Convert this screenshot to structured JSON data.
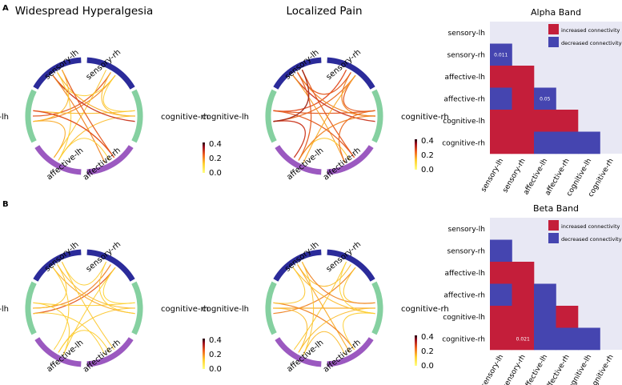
{
  "panels": [
    {
      "letter": "A",
      "circles": [
        {
          "title": "Widespread Hyperalgesia",
          "edges": [
            [
              0,
              4,
              0.25
            ],
            [
              0,
              4,
              0.3
            ],
            [
              0,
              3,
              0.12
            ],
            [
              0,
              5,
              0.1
            ],
            [
              1,
              3,
              0.15
            ],
            [
              1,
              4,
              0.15
            ],
            [
              1,
              5,
              0.35
            ],
            [
              1,
              5,
              0.2
            ],
            [
              2,
              5,
              0.3
            ],
            [
              2,
              5,
              0.25
            ],
            [
              2,
              3,
              0.1
            ],
            [
              2,
              4,
              0.08
            ],
            [
              3,
              4,
              0.2
            ],
            [
              3,
              5,
              0.1
            ],
            [
              4,
              5,
              0.15
            ],
            [
              0,
              1,
              0.1
            ],
            [
              0,
              1,
              0.15
            ],
            [
              2,
              4,
              0.32
            ]
          ]
        },
        {
          "title": "Localized Pain",
          "edges": [
            [
              0,
              1,
              0.3
            ],
            [
              0,
              1,
              0.25
            ],
            [
              0,
              4,
              0.32
            ],
            [
              0,
              4,
              0.28
            ],
            [
              0,
              5,
              0.3
            ],
            [
              1,
              4,
              0.3
            ],
            [
              1,
              5,
              0.35
            ],
            [
              1,
              5,
              0.25
            ],
            [
              2,
              5,
              0.3
            ],
            [
              2,
              5,
              0.22
            ],
            [
              2,
              3,
              0.12
            ],
            [
              2,
              4,
              0.3
            ],
            [
              3,
              4,
              0.35
            ],
            [
              3,
              5,
              0.3
            ],
            [
              4,
              5,
              0.38
            ],
            [
              0,
              3,
              0.2
            ],
            [
              1,
              3,
              0.25
            ],
            [
              1,
              2,
              0.28
            ]
          ]
        }
      ],
      "heatmap": {
        "title": "Alpha Band",
        "cells": [
          [
            "sensory-rh",
            "sensory-lh",
            "dec",
            "0.011"
          ],
          [
            "affective-lh",
            "sensory-lh",
            "inc",
            ""
          ],
          [
            "affective-lh",
            "sensory-rh",
            "inc",
            ""
          ],
          [
            "affective-rh",
            "sensory-lh",
            "dec",
            ""
          ],
          [
            "affective-rh",
            "sensory-rh",
            "inc",
            ""
          ],
          [
            "affective-rh",
            "affective-lh",
            "dec",
            "0.05"
          ],
          [
            "cognitive-lh",
            "sensory-lh",
            "inc",
            ""
          ],
          [
            "cognitive-lh",
            "sensory-rh",
            "inc",
            ""
          ],
          [
            "cognitive-lh",
            "affective-lh",
            "inc",
            ""
          ],
          [
            "cognitive-lh",
            "affective-rh",
            "inc",
            ""
          ],
          [
            "cognitive-rh",
            "sensory-lh",
            "inc",
            ""
          ],
          [
            "cognitive-rh",
            "sensory-rh",
            "inc",
            ""
          ],
          [
            "cognitive-rh",
            "affective-lh",
            "dec",
            ""
          ],
          [
            "cognitive-rh",
            "affective-rh",
            "dec",
            ""
          ],
          [
            "cognitive-rh",
            "cognitive-lh",
            "dec",
            ""
          ]
        ]
      }
    },
    {
      "letter": "B",
      "circles": [
        {
          "title": "",
          "edges": [
            [
              0,
              4,
              0.3
            ],
            [
              0,
              4,
              0.25
            ],
            [
              0,
              5,
              0.1
            ],
            [
              0,
              3,
              0.1
            ],
            [
              1,
              3,
              0.12
            ],
            [
              1,
              4,
              0.1
            ],
            [
              1,
              5,
              0.2
            ],
            [
              1,
              5,
              0.15
            ],
            [
              2,
              5,
              0.12
            ],
            [
              2,
              4,
              0.1
            ],
            [
              2,
              3,
              0.1
            ],
            [
              3,
              4,
              0.1
            ],
            [
              3,
              5,
              0.1
            ],
            [
              4,
              5,
              0.12
            ],
            [
              0,
              1,
              0.1
            ],
            [
              0,
              1,
              0.08
            ]
          ]
        },
        {
          "title": "",
          "edges": [
            [
              0,
              4,
              0.25
            ],
            [
              0,
              5,
              0.15
            ],
            [
              0,
              3,
              0.12
            ],
            [
              0,
              1,
              0.12
            ],
            [
              1,
              4,
              0.2
            ],
            [
              1,
              5,
              0.25
            ],
            [
              1,
              5,
              0.15
            ],
            [
              2,
              5,
              0.2
            ],
            [
              2,
              4,
              0.25
            ],
            [
              2,
              3,
              0.15
            ],
            [
              3,
              4,
              0.15
            ],
            [
              3,
              5,
              0.12
            ],
            [
              4,
              5,
              0.12
            ],
            [
              1,
              3,
              0.15
            ],
            [
              0,
              1,
              0.08
            ],
            [
              1,
              2,
              0.1
            ]
          ]
        }
      ],
      "heatmap": {
        "title": "Beta Band",
        "cells": [
          [
            "sensory-rh",
            "sensory-lh",
            "dec",
            ""
          ],
          [
            "affective-lh",
            "sensory-lh",
            "inc",
            ""
          ],
          [
            "affective-lh",
            "sensory-rh",
            "inc",
            ""
          ],
          [
            "affective-rh",
            "sensory-lh",
            "dec",
            ""
          ],
          [
            "affective-rh",
            "sensory-rh",
            "inc",
            ""
          ],
          [
            "affective-rh",
            "affective-lh",
            "dec",
            ""
          ],
          [
            "cognitive-lh",
            "sensory-lh",
            "inc",
            ""
          ],
          [
            "cognitive-lh",
            "sensory-rh",
            "inc",
            ""
          ],
          [
            "cognitive-lh",
            "affective-lh",
            "dec",
            ""
          ],
          [
            "cognitive-lh",
            "affective-rh",
            "inc",
            ""
          ],
          [
            "cognitive-rh",
            "sensory-lh",
            "inc",
            ""
          ],
          [
            "cognitive-rh",
            "sensory-rh",
            "inc",
            "0.021"
          ],
          [
            "cognitive-rh",
            "affective-lh",
            "dec",
            ""
          ],
          [
            "cognitive-rh",
            "affective-rh",
            "dec",
            ""
          ],
          [
            "cognitive-rh",
            "cognitive-lh",
            "dec",
            ""
          ]
        ]
      }
    }
  ],
  "regions": [
    "sensory-lh",
    "sensory-rh",
    "affective-lh",
    "affective-rh",
    "cognitive-lh",
    "cognitive-rh"
  ],
  "node_labels": [
    "sensory-rh",
    "cognitive-rh",
    "affective-rh",
    "affective-lh",
    "cognitive-lh",
    "sensory-lh"
  ],
  "node_colors": [
    "#2b2b9a",
    "#85d0a0",
    "#9b59c0",
    "#9b59c0",
    "#85d0a0",
    "#2b2b9a"
  ],
  "colorbar": {
    "ticks": [
      "0.4",
      "0.2",
      "0.0"
    ]
  },
  "legend": {
    "increased": "increased connectivity",
    "decreased": "decreased connectivity"
  },
  "colors": {
    "increased": "#c41e3a",
    "decreased": "#4545b0",
    "heatmap_bg": "#e8e8f4"
  }
}
